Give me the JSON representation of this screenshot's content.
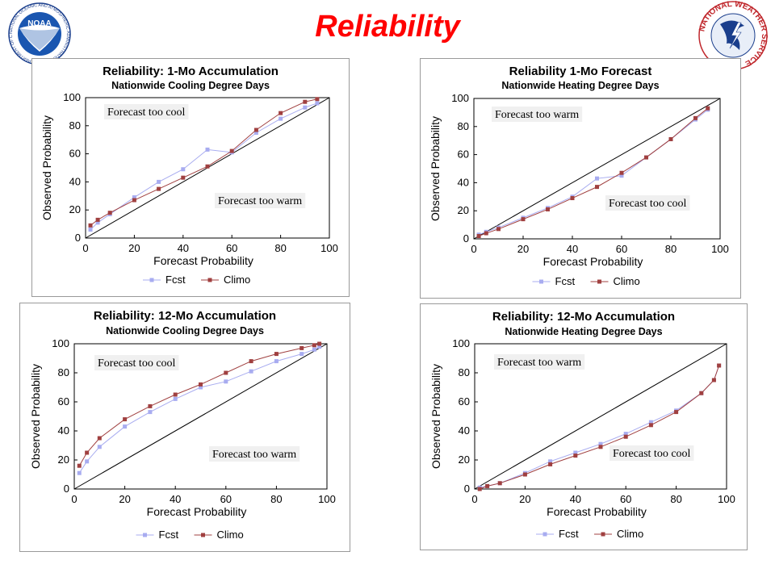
{
  "slide": {
    "title": "Reliability",
    "title_color": "#ff0000",
    "logos": [
      {
        "icon": "noaa-logo-icon",
        "label": "NOAA",
        "ring_text": "NATIONAL OCEANIC AND ATMOSPHERIC ADMINISTRATION · U.S. DEPARTMENT OF COMMERCE ·"
      },
      {
        "icon": "nws-logo-icon",
        "ring_text": "NATIONAL WEATHER SERVICE"
      }
    ]
  },
  "colors": {
    "fcst": "#a8acf0",
    "climo": "#a04040",
    "diagonal": "#000000",
    "annotation_bg": "#f0f0f0"
  },
  "chart_data": [
    {
      "type": "line",
      "title": "Reliability: 1-Mo Accumulation",
      "subtitle": "Nationwide Cooling Degree Days",
      "xlabel": "Forecast Probability",
      "ylabel": "Observed Probability",
      "xlim": [
        0,
        100
      ],
      "ylim": [
        0,
        100
      ],
      "xticks": [
        "0",
        "20",
        "40",
        "60",
        "80",
        "100"
      ],
      "yticks": [
        "0",
        "20",
        "40",
        "60",
        "80",
        "100"
      ],
      "grid": false,
      "legend": "bottom",
      "annotations": [
        {
          "text": "Forecast too cool",
          "placement": "upper-left"
        },
        {
          "text": "Forecast too warm",
          "placement": "lower-right"
        }
      ],
      "series": [
        {
          "name": "Fcst",
          "x": [
            2,
            5,
            10,
            20,
            30,
            40,
            50,
            60,
            70,
            80,
            90,
            95
          ],
          "y": [
            6,
            11,
            17,
            29,
            40,
            49,
            63,
            61,
            75,
            85,
            93,
            96
          ]
        },
        {
          "name": "Climo",
          "x": [
            2,
            5,
            10,
            20,
            30,
            40,
            50,
            60,
            70,
            80,
            90,
            95
          ],
          "y": [
            9,
            13,
            18,
            27,
            35,
            43,
            51,
            62,
            77,
            89,
            97,
            99
          ]
        }
      ]
    },
    {
      "type": "line",
      "title": "Reliability 1-Mo Forecast",
      "subtitle": "Nationwide Heating Degree Days",
      "xlabel": "Forecast Probability",
      "ylabel": "Observed Probability",
      "xlim": [
        0,
        100
      ],
      "ylim": [
        0,
        100
      ],
      "xticks": [
        "0",
        "20",
        "40",
        "60",
        "80",
        "100"
      ],
      "yticks": [
        "0",
        "20",
        "40",
        "60",
        "80",
        "100"
      ],
      "grid": false,
      "legend": "bottom",
      "annotations": [
        {
          "text": "Forecast too warm",
          "placement": "upper-left"
        },
        {
          "text": "Forecast too cool",
          "placement": "lower-right"
        }
      ],
      "series": [
        {
          "name": "Fcst",
          "x": [
            2,
            5,
            10,
            20,
            30,
            40,
            50,
            60,
            70,
            80,
            90,
            95
          ],
          "y": [
            3,
            5,
            8,
            15,
            22,
            30,
            43,
            45,
            58,
            71,
            85,
            92
          ]
        },
        {
          "name": "Climo",
          "x": [
            2,
            5,
            10,
            20,
            30,
            40,
            50,
            60,
            70,
            80,
            90,
            95
          ],
          "y": [
            2,
            4,
            7,
            14,
            21,
            29,
            37,
            47,
            58,
            71,
            86,
            93
          ]
        }
      ]
    },
    {
      "type": "line",
      "title": "Reliability: 12-Mo Accumulation",
      "subtitle": "Nationwide Cooling Degree Days",
      "xlabel": "Forecast Probability",
      "ylabel": "Observed Probability",
      "xlim": [
        0,
        100
      ],
      "ylim": [
        0,
        100
      ],
      "xticks": [
        "0",
        "20",
        "40",
        "60",
        "80",
        "100"
      ],
      "yticks": [
        "0",
        "20",
        "40",
        "60",
        "80",
        "100"
      ],
      "grid": false,
      "legend": "bottom",
      "annotations": [
        {
          "text": "Forecast too cool",
          "placement": "upper-left"
        },
        {
          "text": "Forecast too warm",
          "placement": "lower-right"
        }
      ],
      "series": [
        {
          "name": "Fcst",
          "x": [
            2,
            5,
            10,
            20,
            30,
            40,
            50,
            60,
            70,
            80,
            90,
            95,
            97
          ],
          "y": [
            11,
            19,
            29,
            43,
            53,
            62,
            70,
            74,
            81,
            88,
            93,
            96,
            98
          ]
        },
        {
          "name": "Climo",
          "x": [
            2,
            5,
            10,
            20,
            30,
            40,
            50,
            60,
            70,
            80,
            90,
            95,
            97
          ],
          "y": [
            16,
            25,
            35,
            48,
            57,
            65,
            72,
            80,
            88,
            93,
            97,
            99,
            100
          ]
        }
      ]
    },
    {
      "type": "line",
      "title": "Reliability: 12-Mo Accumulation",
      "subtitle": "Nationwide Heating Degree Days",
      "xlabel": "Forecast Probability",
      "ylabel": "Observed Probability",
      "xlim": [
        0,
        100
      ],
      "ylim": [
        0,
        100
      ],
      "xticks": [
        "0",
        "20",
        "40",
        "60",
        "80",
        "100"
      ],
      "yticks": [
        "0",
        "20",
        "40",
        "60",
        "80",
        "100"
      ],
      "grid": false,
      "legend": "bottom",
      "annotations": [
        {
          "text": "Forecast too warm",
          "placement": "upper-left"
        },
        {
          "text": "Forecast too cool",
          "placement": "lower-right"
        }
      ],
      "series": [
        {
          "name": "Fcst",
          "x": [
            2,
            5,
            10,
            20,
            30,
            40,
            50,
            60,
            70,
            80,
            90,
            95,
            97
          ],
          "y": [
            1,
            2,
            4,
            11,
            19,
            25,
            31,
            38,
            46,
            54,
            66,
            75,
            85
          ]
        },
        {
          "name": "Climo",
          "x": [
            2,
            5,
            10,
            20,
            30,
            40,
            50,
            60,
            70,
            80,
            90,
            95,
            97
          ],
          "y": [
            0,
            2,
            4,
            10,
            17,
            23,
            29,
            36,
            44,
            53,
            66,
            75,
            85
          ]
        }
      ]
    }
  ]
}
